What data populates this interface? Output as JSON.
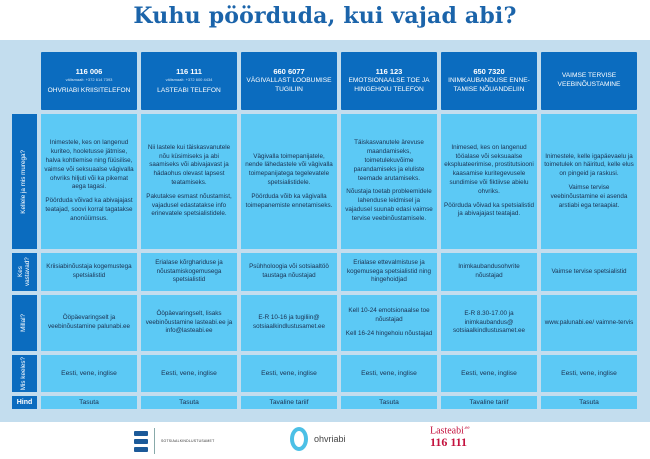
{
  "title": "Kuhu pöörduda, kui vajad abi?",
  "row_labels": [
    "Kellele ja mis murega?",
    "Kes vastavad?",
    "Millal?",
    "Mis keeles?",
    "Hind"
  ],
  "columns": [
    {
      "number": "116 006",
      "intl": "välismaalt: +372 614 7393",
      "name": "OHVRIABI KRIISITELEFON",
      "who": [
        "Inimestele, kes on langenud kuriteo, hooletusse jätmise, halva kohtlemise ning füüsilise, vaimse või seksuaalse vägivalla ohvriks hiljuti või ka pikemat aega tagasi.",
        "Pöörduda võivad ka abivajajast teatajad, soovi korral tagatakse anonüümsus."
      ],
      "answerers": "Kriisiabinõustaja kogemustega spetsialistid",
      "when": [
        "Ööpäevaringselt ja veebinõustamine palunabi.ee"
      ],
      "languages": "Eesti, vene, inglise",
      "price": "Tasuta"
    },
    {
      "number": "116 111",
      "intl": "välismaalt: +372 600 4434",
      "name": "LASTEABI TELEFON",
      "who": [
        "Nii lastele kui täiskasvanutele nõu küsimiseks ja abi saamiseks või abivajavast ja hädaohus olevast lapsest teatamiseks.",
        "Pakutakse esmast nõustamist, vajadusel edastatakse info erinevatele spetsialistidele."
      ],
      "answerers": "Erialase kõrghariduse ja nõustamiskogemusega spetsialistid",
      "when": [
        "Ööpäevaringselt, lisaks veebinõustamine lasteabi.ee ja info@lasteabi.ee"
      ],
      "languages": "Eesti, vene, inglise",
      "price": "Tasuta"
    },
    {
      "number": "660 6077",
      "intl": "",
      "name": "VÄGIVALLAST LOOBUMISE TUGILIIN",
      "who": [
        "Vägivalla toimepanijatele, nende lähedastele või vägivalla toimepanijatega tegelevatele spetsialistidele.",
        "Pöörduda võib ka vägivalla toimepanemiste ennetamiseks."
      ],
      "answerers": "Psühholoogia või sotsiaaltöö taustaga nõustajad",
      "when": [
        "E-R 10-16 ja tugiliin@ sotsiaalkindlustusamet.ee"
      ],
      "languages": "Eesti, vene, inglise",
      "price": "Tavaline tariif"
    },
    {
      "number": "116 123",
      "intl": "",
      "name": "EMOTSIONAALSE TOE JA HINGEHOIU TELEFON",
      "who": [
        "Täiskasvanutele ärevuse maandamiseks, toimetulekuvõime parandamiseks ja eluliste teemade arutamiseks.",
        "Nõustaja toetab probleemidele lahenduse leidmisel ja vajadusel suunab edasi vaimse tervise veebinõustamisele."
      ],
      "answerers": "Erialase ettevalmistuse ja kogemusega spetsialistid ning hingehoidjad",
      "when": [
        "Kell 10-24 emotsionaalse toe nõustajad",
        "Kell 16-24 hingehoiu nõustajad"
      ],
      "languages": "Eesti, vene, inglise",
      "price": "Tasuta"
    },
    {
      "number": "650 7320",
      "intl": "",
      "name": "INIMKAUBANDUSE ENNE-TAMISE NÕUANDELIIN",
      "who": [
        "Inimesed, kes on langenud tööalase või seksuaalse ekspluateerimise, prostitutsiooni kaasamise kuritegevusele sundimise või fiktiivse abielu ohvriks.",
        "Pöörduda võivad ka spetsialistid ja abivajajast teatajad."
      ],
      "answerers": "Inimkaubandusohvrite nõustajad",
      "when": [
        "E-R 8.30-17.00 ja inimkaubandus@ sotsiaalkindlustusamet.ee"
      ],
      "languages": "Eesti, vene, inglise",
      "price": "Tavaline tariif"
    },
    {
      "number": "",
      "intl": "",
      "name": "VAIMSE TERVISE VEEBINÕUSTAMINE",
      "who": [
        "Inimestele, kelle igapäevaelu ja toimetulek on häiritud, kelle elus on pingeid ja raskusi.",
        "Vaimse tervise veebinõustamine ei asenda arstiabi ega teraapiat."
      ],
      "answerers": "Vaimse tervise spetsialistid",
      "when": [
        "www.palunabi.ee/ vaimne-tervis"
      ],
      "languages": "Eesti, vene, inglise",
      "price": "Tasuta"
    }
  ],
  "logos": {
    "sotsiaalkindlustusamet": "SOTSIAALKINDLUSTUSAMET",
    "ohvriabi": "ohvriabi",
    "lasteabi": "Lasteabi",
    "lasteabi_tld": ".ee",
    "lasteabi_number": "116 111"
  },
  "colors": {
    "header": "#0b6cbf",
    "cell": "#5cc9f5",
    "panel": "#c3ddee",
    "title": "#1b64aa",
    "lasteabi": "#c4123e"
  }
}
